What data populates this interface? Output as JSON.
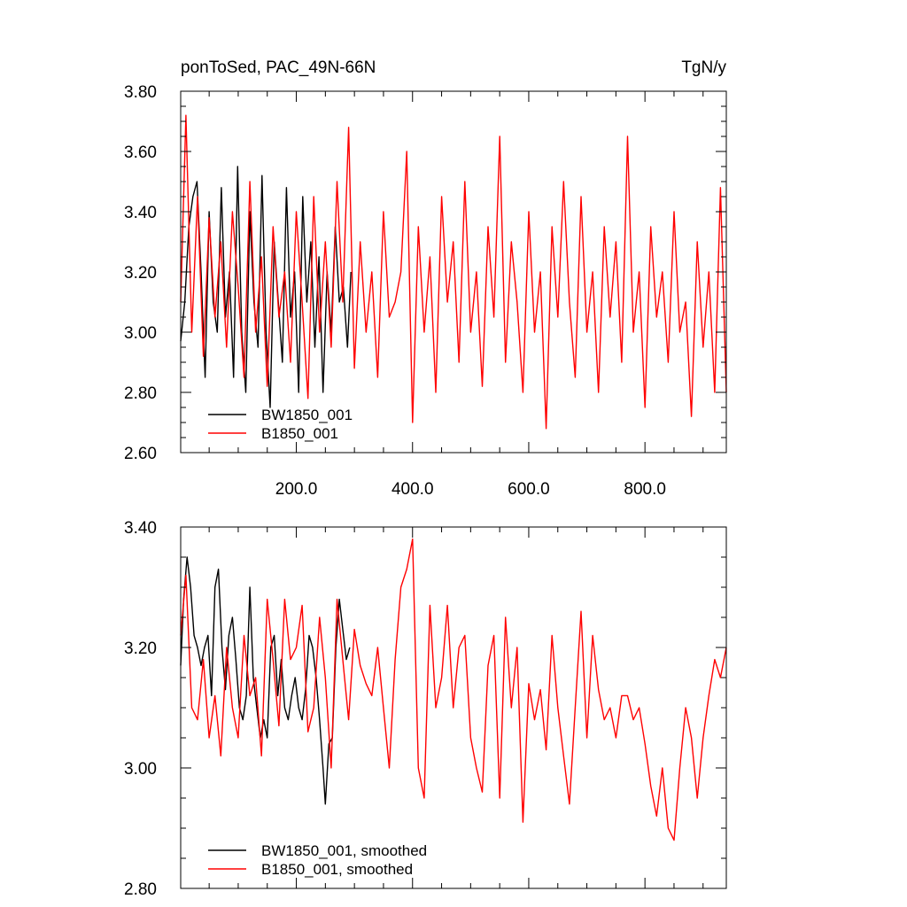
{
  "chart_data": [
    {
      "type": "line",
      "title_left": "ponToSed, PAC_49N-66N",
      "title_right": "TgN/y",
      "xlim": [
        1,
        940
      ],
      "ylim": [
        2.6,
        3.8
      ],
      "x_ticks": [
        200,
        400,
        600,
        800
      ],
      "x_tick_labels": [
        "200.0",
        "400.0",
        "600.0",
        "800.0"
      ],
      "y_ticks": [
        2.6,
        2.8,
        3.0,
        3.2,
        3.4,
        3.6,
        3.8
      ],
      "y_tick_labels": [
        "2.60",
        "2.80",
        "3.00",
        "3.20",
        "3.40",
        "3.60",
        "3.80"
      ],
      "legend_position": "bottom-left",
      "series": [
        {
          "name": "BW1850_001",
          "color": "#000000",
          "x": [
            1,
            8,
            15,
            22,
            29,
            36,
            43,
            50,
            57,
            64,
            71,
            78,
            85,
            92,
            99,
            106,
            113,
            120,
            127,
            134,
            141,
            148,
            155,
            162,
            169,
            176,
            183,
            190,
            197,
            204,
            211,
            218,
            225,
            232,
            239,
            246,
            253,
            260,
            267,
            274,
            281,
            288,
            294
          ],
          "values": [
            2.97,
            3.1,
            3.35,
            3.45,
            3.5,
            3.2,
            2.85,
            3.4,
            3.1,
            3.0,
            3.48,
            3.05,
            3.2,
            2.85,
            3.55,
            3.0,
            2.8,
            3.4,
            3.1,
            2.95,
            3.52,
            3.0,
            2.75,
            3.3,
            3.1,
            2.9,
            3.48,
            3.05,
            3.2,
            2.8,
            3.45,
            3.1,
            3.3,
            2.95,
            3.25,
            2.8,
            3.2,
            3.0,
            3.35,
            3.1,
            3.15,
            2.95,
            3.2
          ]
        },
        {
          "name": "B1850_001",
          "color": "#ff0000",
          "x": [
            1,
            10,
            20,
            30,
            40,
            50,
            60,
            70,
            80,
            90,
            100,
            110,
            120,
            130,
            140,
            150,
            160,
            170,
            180,
            190,
            200,
            210,
            220,
            230,
            240,
            250,
            260,
            270,
            280,
            290,
            300,
            310,
            320,
            330,
            340,
            350,
            360,
            370,
            380,
            390,
            400,
            410,
            420,
            430,
            440,
            450,
            460,
            470,
            480,
            490,
            500,
            510,
            520,
            530,
            540,
            550,
            560,
            570,
            580,
            590,
            600,
            610,
            620,
            630,
            640,
            650,
            660,
            670,
            680,
            690,
            700,
            710,
            720,
            730,
            740,
            750,
            760,
            770,
            780,
            790,
            800,
            810,
            820,
            830,
            840,
            850,
            860,
            870,
            880,
            890,
            900,
            910,
            920,
            930,
            940
          ],
          "values": [
            3.1,
            3.72,
            3.0,
            3.45,
            2.92,
            3.38,
            3.05,
            3.3,
            2.95,
            3.4,
            3.15,
            2.85,
            3.5,
            3.0,
            3.25,
            2.82,
            3.35,
            3.05,
            3.2,
            2.9,
            3.4,
            3.1,
            2.78,
            3.45,
            3.0,
            3.3,
            2.95,
            3.5,
            3.1,
            3.68,
            2.88,
            3.3,
            3.0,
            3.2,
            2.85,
            3.4,
            3.05,
            3.1,
            3.2,
            3.6,
            2.7,
            3.35,
            3.0,
            3.25,
            2.8,
            3.45,
            3.1,
            3.3,
            2.9,
            3.5,
            3.0,
            3.2,
            2.82,
            3.35,
            3.05,
            3.65,
            2.9,
            3.3,
            3.1,
            2.8,
            3.4,
            3.0,
            3.2,
            2.68,
            3.35,
            3.05,
            3.5,
            3.1,
            2.85,
            3.45,
            3.0,
            3.2,
            2.8,
            3.35,
            3.05,
            3.3,
            2.9,
            3.65,
            3.0,
            3.2,
            2.75,
            3.35,
            3.05,
            3.2,
            2.9,
            3.4,
            3.0,
            3.1,
            2.72,
            3.3,
            2.95,
            3.2,
            2.8,
            3.48,
            2.8
          ]
        }
      ]
    },
    {
      "type": "line",
      "xlim": [
        1,
        940
      ],
      "ylim": [
        2.8,
        3.4
      ],
      "y_ticks": [
        2.8,
        3.0,
        3.2,
        3.4
      ],
      "y_tick_labels": [
        "2.80",
        "3.00",
        "3.20",
        "3.40"
      ],
      "x_ticks": [
        200,
        400,
        600,
        800
      ],
      "legend_position": "bottom-left",
      "series": [
        {
          "name": "BW1850_001, smoothed",
          "color": "#000000",
          "x": [
            1,
            6,
            12,
            18,
            24,
            30,
            36,
            42,
            48,
            54,
            60,
            66,
            72,
            78,
            84,
            90,
            96,
            102,
            108,
            114,
            120,
            126,
            132,
            138,
            144,
            150,
            156,
            162,
            168,
            174,
            180,
            186,
            192,
            198,
            204,
            210,
            216,
            222,
            228,
            234,
            240,
            246,
            250,
            256,
            262,
            268,
            274,
            280,
            286,
            292
          ],
          "values": [
            3.17,
            3.28,
            3.35,
            3.3,
            3.22,
            3.2,
            3.17,
            3.2,
            3.22,
            3.12,
            3.3,
            3.33,
            3.2,
            3.13,
            3.22,
            3.25,
            3.18,
            3.1,
            3.08,
            3.12,
            3.3,
            3.15,
            3.1,
            3.05,
            3.08,
            3.05,
            3.2,
            3.22,
            3.12,
            3.18,
            3.1,
            3.08,
            3.12,
            3.15,
            3.1,
            3.08,
            3.13,
            3.22,
            3.2,
            3.15,
            3.08,
            3.0,
            2.94,
            3.04,
            3.05,
            3.2,
            3.28,
            3.23,
            3.18,
            3.2
          ]
        },
        {
          "name": "B1850_001, smoothed",
          "color": "#ff0000",
          "x": [
            1,
            10,
            20,
            30,
            40,
            50,
            60,
            70,
            80,
            90,
            100,
            110,
            120,
            130,
            140,
            150,
            160,
            170,
            180,
            190,
            200,
            210,
            220,
            230,
            240,
            250,
            260,
            270,
            280,
            290,
            300,
            310,
            320,
            330,
            340,
            350,
            360,
            370,
            380,
            390,
            400,
            410,
            420,
            430,
            440,
            450,
            460,
            470,
            480,
            490,
            500,
            510,
            520,
            530,
            540,
            550,
            560,
            570,
            580,
            590,
            600,
            610,
            620,
            630,
            640,
            650,
            660,
            670,
            680,
            690,
            700,
            710,
            720,
            730,
            740,
            750,
            760,
            770,
            780,
            790,
            800,
            810,
            820,
            830,
            840,
            850,
            860,
            870,
            880,
            890,
            900,
            910,
            920,
            930,
            940
          ],
          "values": [
            3.22,
            3.32,
            3.1,
            3.08,
            3.18,
            3.05,
            3.12,
            3.02,
            3.2,
            3.1,
            3.05,
            3.22,
            3.12,
            3.15,
            3.02,
            3.28,
            3.18,
            3.07,
            3.28,
            3.18,
            3.2,
            3.27,
            3.06,
            3.1,
            3.25,
            3.15,
            3.0,
            3.28,
            3.18,
            3.08,
            3.23,
            3.17,
            3.14,
            3.12,
            3.2,
            3.1,
            3.0,
            3.18,
            3.3,
            3.33,
            3.38,
            3.0,
            2.95,
            3.27,
            3.1,
            3.15,
            3.27,
            3.1,
            3.2,
            3.22,
            3.05,
            3.0,
            2.96,
            3.17,
            3.22,
            2.95,
            3.25,
            3.1,
            3.2,
            2.91,
            3.14,
            3.08,
            3.13,
            3.03,
            3.22,
            3.1,
            3.02,
            2.94,
            3.1,
            3.26,
            3.05,
            3.22,
            3.13,
            3.08,
            3.1,
            3.05,
            3.12,
            3.12,
            3.08,
            3.1,
            3.04,
            2.97,
            2.92,
            3.0,
            2.9,
            2.88,
            3.0,
            3.1,
            3.05,
            2.95,
            3.05,
            3.12,
            3.18,
            3.15,
            3.2
          ]
        }
      ]
    }
  ]
}
